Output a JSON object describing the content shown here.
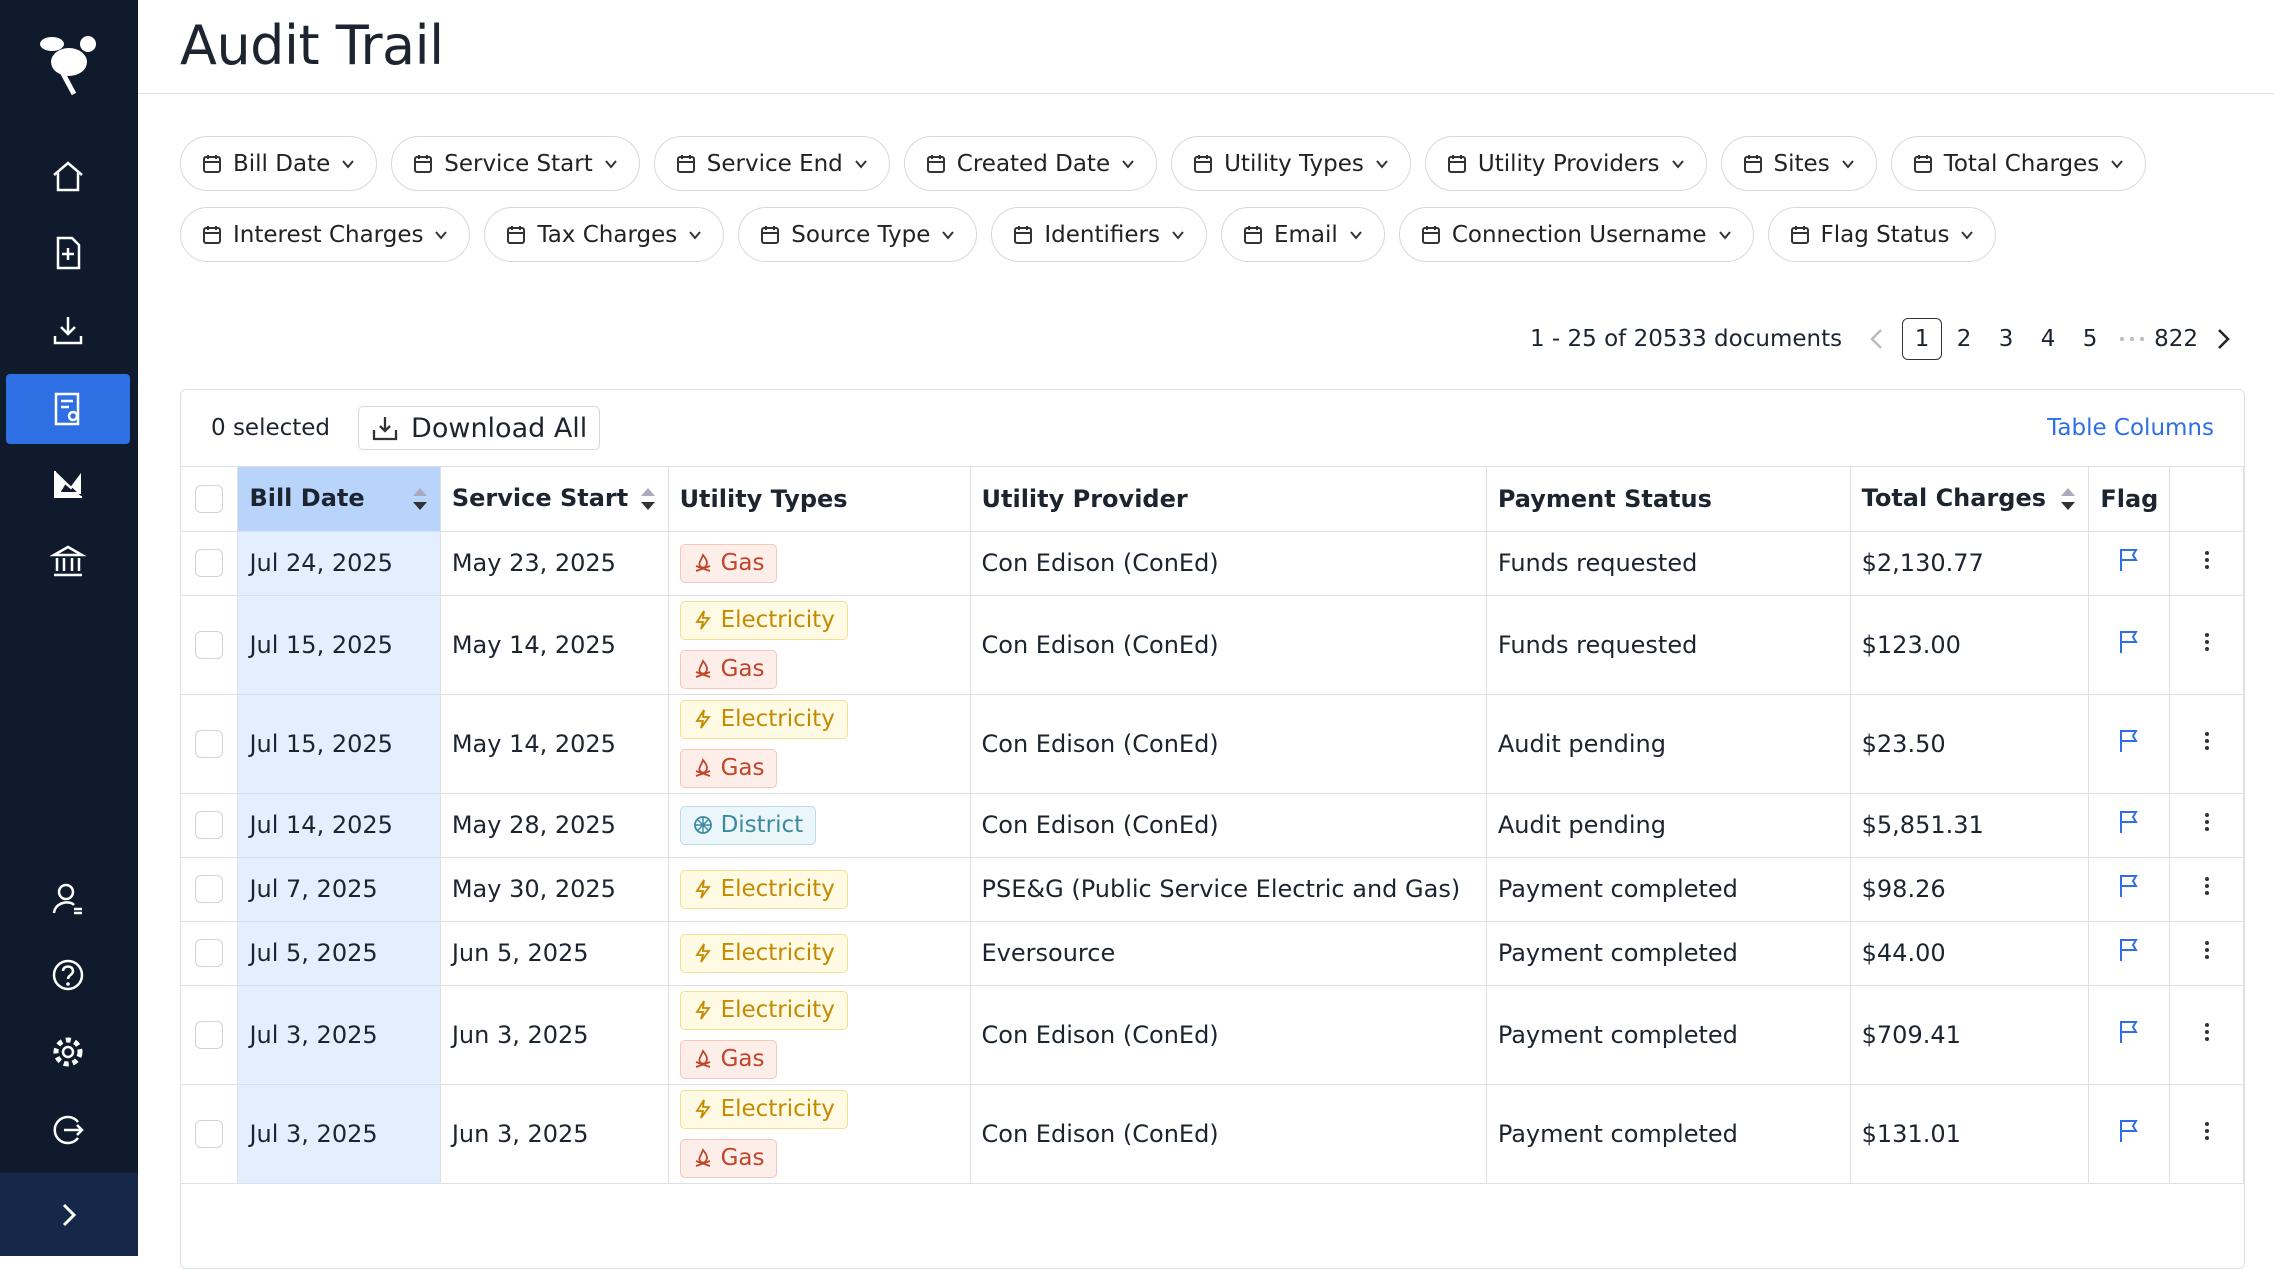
{
  "header": {
    "title": "Audit Trail"
  },
  "filter_rows": [
    [
      "Bill Date",
      "Service Start",
      "Service End",
      "Created Date",
      "Utility Types",
      "Utility Providers",
      "Sites",
      "Total Charges"
    ],
    [
      "Interest Charges",
      "Tax Charges",
      "Source Type",
      "Identifiers",
      "Email",
      "Connection Username",
      "Flag Status"
    ]
  ],
  "pagination": {
    "summary": "1 - 25 of 20533 documents",
    "pages": [
      "1",
      "2",
      "3",
      "4",
      "5",
      "822"
    ],
    "current": "1"
  },
  "toolbar": {
    "selected": "0 selected",
    "download": "Download All",
    "columns_link": "Table Columns"
  },
  "table": {
    "columns": [
      {
        "label": "Bill Date",
        "sortable": true
      },
      {
        "label": "Service Start",
        "sortable": true
      },
      {
        "label": "Utility Types",
        "sortable": false
      },
      {
        "label": "Utility Provider",
        "sortable": false
      },
      {
        "label": "Payment Status",
        "sortable": false
      },
      {
        "label": "Total Charges",
        "sortable": true
      },
      {
        "label": "Flag",
        "sortable": false
      }
    ],
    "rows": [
      [
        "Jul 24, 2025",
        "May 23, 2025",
        [
          "Gas"
        ],
        "Con Edison (ConEd)",
        "Funds requested",
        "$2,130.77"
      ],
      [
        "Jul 15, 2025",
        "May 14, 2025",
        [
          "Electricity",
          "Gas"
        ],
        "Con Edison (ConEd)",
        "Funds requested",
        "$123.00"
      ],
      [
        "Jul 15, 2025",
        "May 14, 2025",
        [
          "Electricity",
          "Gas"
        ],
        "Con Edison (ConEd)",
        "Audit pending",
        "$23.50"
      ],
      [
        "Jul 14, 2025",
        "May 28, 2025",
        [
          "District"
        ],
        "Con Edison (ConEd)",
        "Audit pending",
        "$5,851.31"
      ],
      [
        "Jul 7, 2025",
        "May 30, 2025",
        [
          "Electricity"
        ],
        "PSE&G (Public Service Electric and Gas)",
        "Payment completed",
        "$98.26"
      ],
      [
        "Jul 5, 2025",
        "Jun 5, 2025",
        [
          "Electricity"
        ],
        "Eversource",
        "Payment completed",
        "$44.00"
      ],
      [
        "Jul 3, 2025",
        "Jun 3, 2025",
        [
          "Electricity",
          "Gas"
        ],
        "Con Edison (ConEd)",
        "Payment completed",
        "$709.41"
      ],
      [
        "Jul 3, 2025",
        "Jun 3, 2025",
        [
          "Electricity",
          "Gas"
        ],
        "Con Edison (ConEd)",
        "Payment completed",
        "$131.01"
      ]
    ]
  }
}
